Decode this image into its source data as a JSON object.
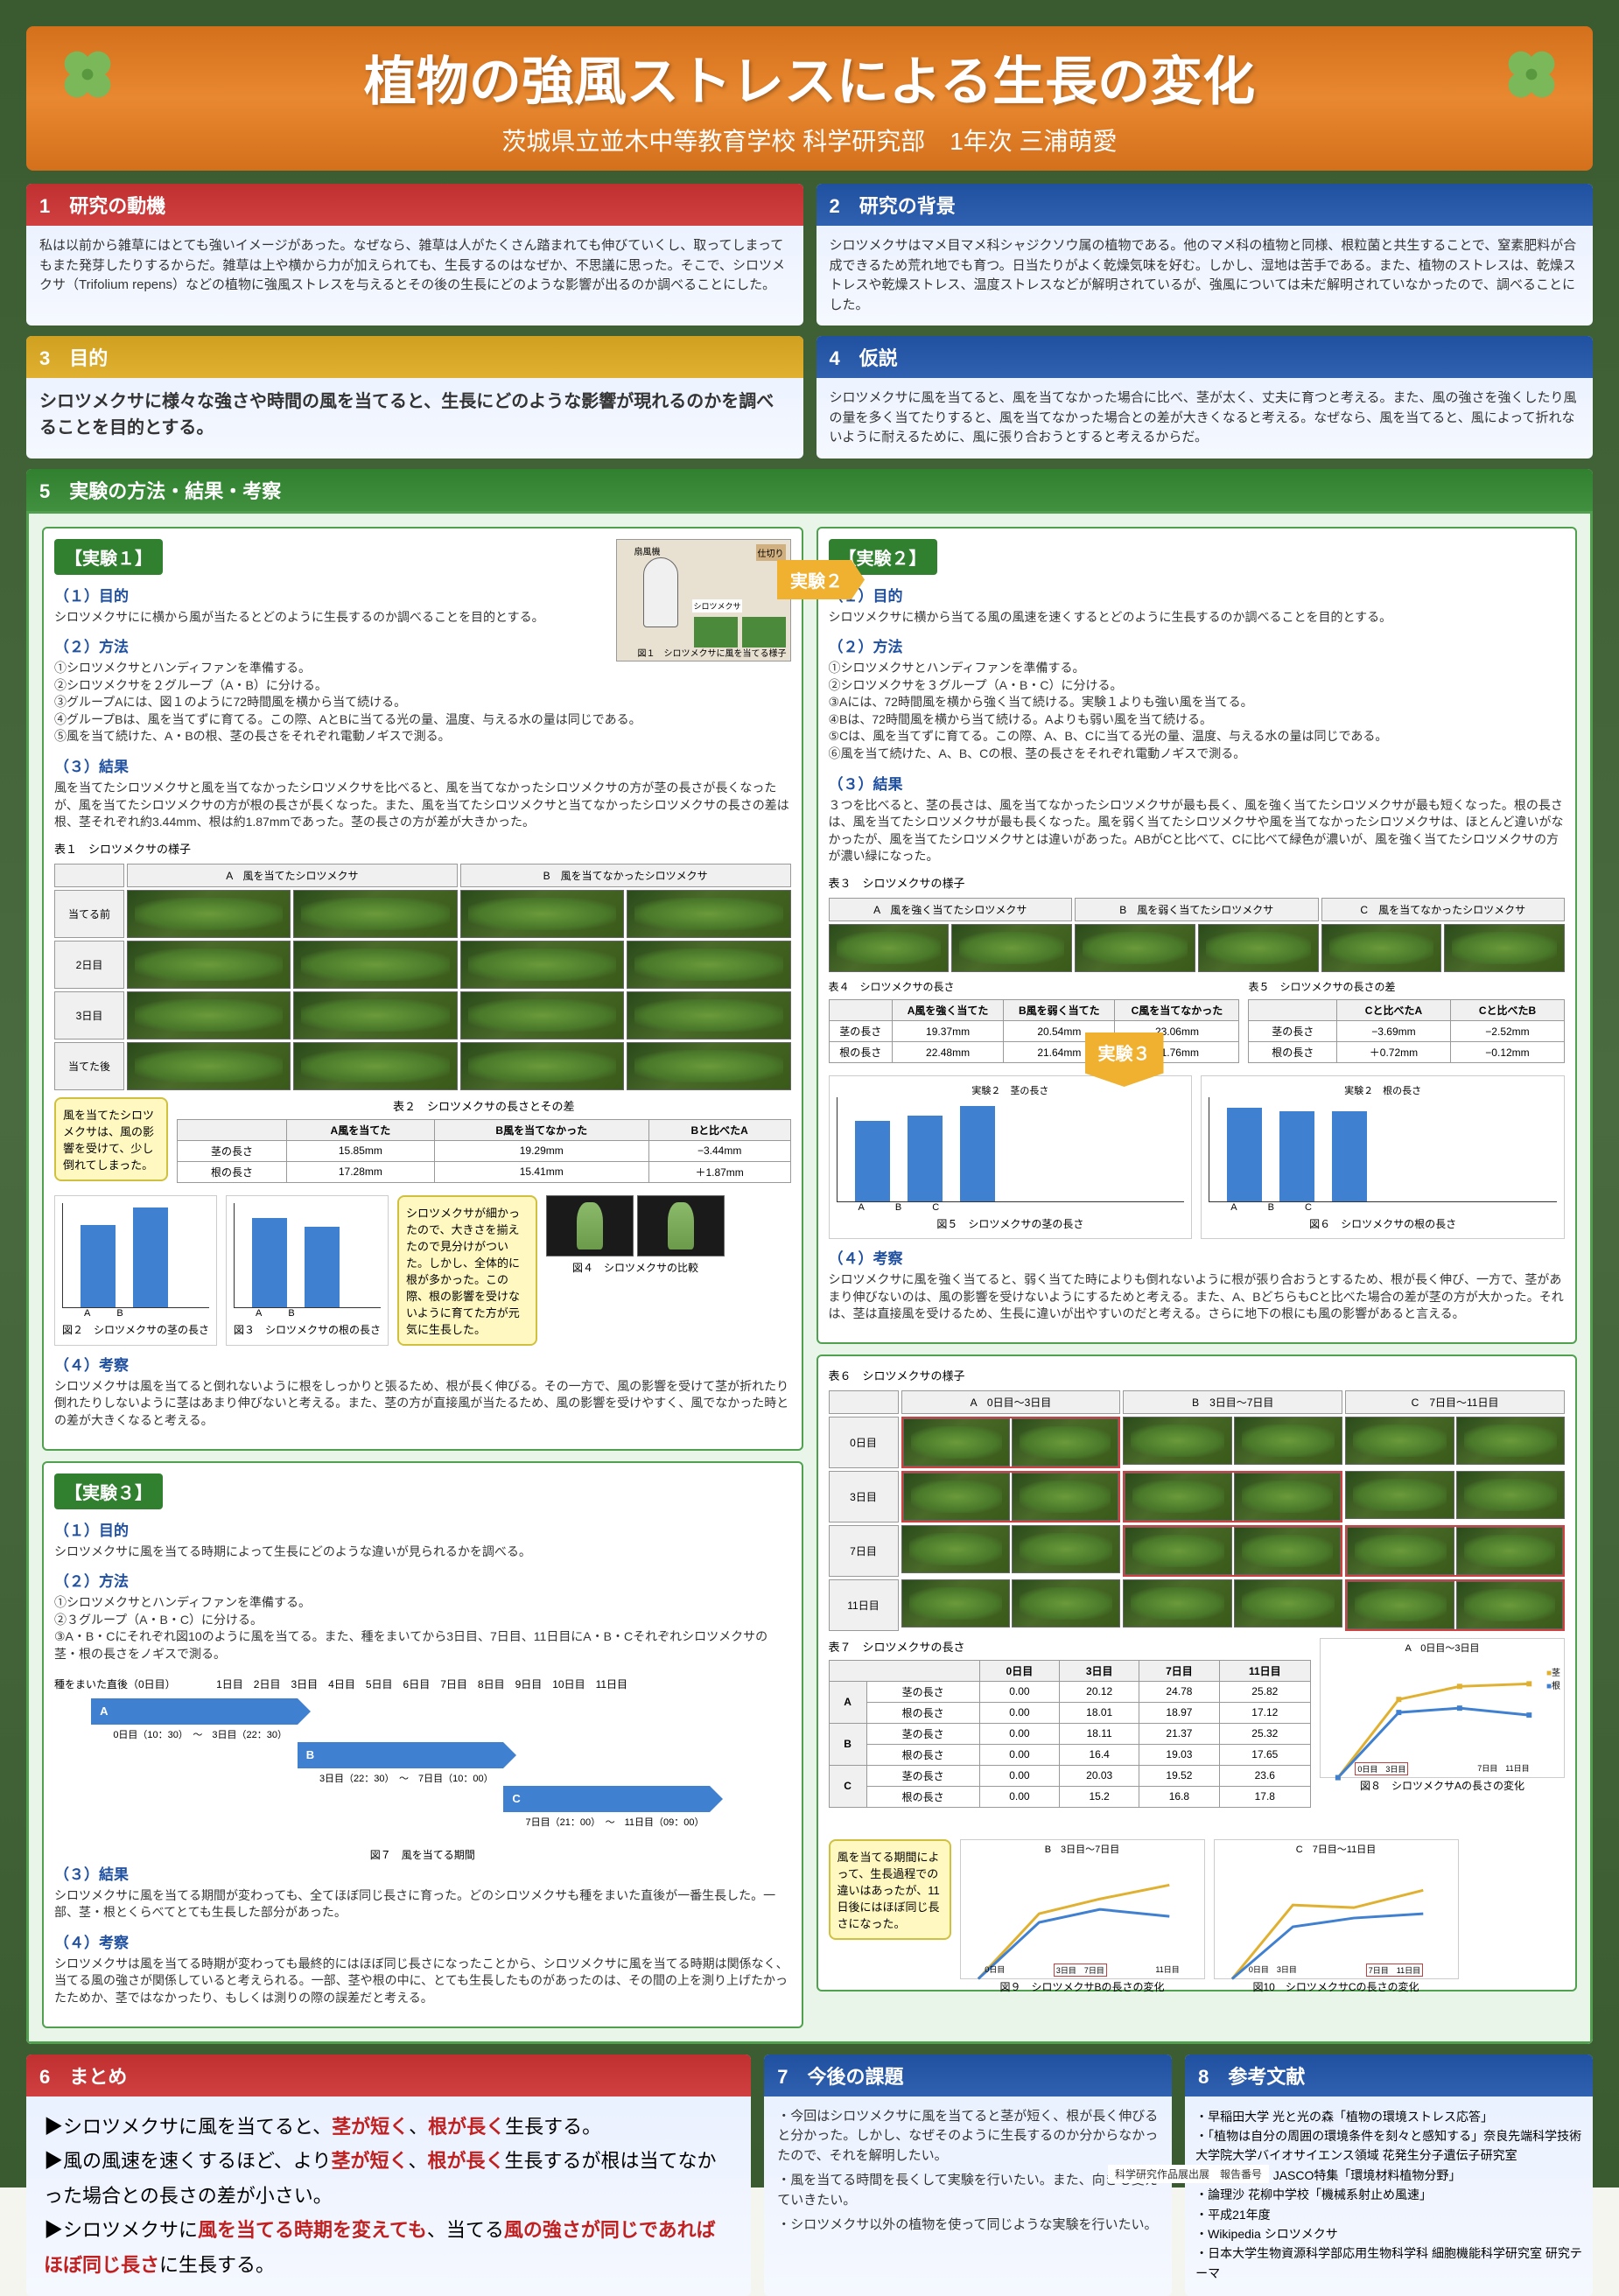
{
  "title": "植物の強風ストレスによる生長の変化",
  "subtitle": "茨城県立並木中等教育学校 科学研究部　1年次 三浦萌愛",
  "s1": {
    "head": "1　研究の動機",
    "body": "私は以前から雑草にはとても強いイメージがあった。なぜなら、雑草は人がたくさん踏まれても伸びていくし、取ってしまってもまた発芽したりするからだ。雑草は上や横から力が加えられても、生長するのはなぜか、不思議に思った。そこで、シロツメクサ（Trifolium repens）などの植物に強風ストレスを与えるとその後の生長にどのような影響が出るのか調べることにした。"
  },
  "s2": {
    "head": "2　研究の背景",
    "body": "シロツメクサはマメ目マメ科シャジクソウ属の植物である。他のマメ科の植物と同様、根粒菌と共生することで、窒素肥料が合成できるため荒れ地でも育つ。日当たりがよく乾燥気味を好む。しかし、湿地は苦手である。また、植物のストレスは、乾燥ストレスや乾燥ストレス、温度ストレスなどが解明されているが、強風については未だ解明されていなかったので、調べることにした。"
  },
  "s3": {
    "head": "3　目的",
    "body": "シロツメクサに様々な強さや時間の風を当てると、生長にどのような影響が現れるのかを調べることを目的とする。"
  },
  "s4": {
    "head": "4　仮説",
    "body": "シロツメクサに風を当てると、風を当てなかった場合に比べ、茎が太く、丈夫に育つと考える。また、風の強さを強くしたり風の量を多く当てたりすると、風を当てなかった場合との差が大きくなると考える。なぜなら、風を当てると、風によって折れないように耐えるために、風に張り合おうとすると考えるからだ。"
  },
  "s5": {
    "head": "5　実験の方法・結果・考察"
  },
  "exp1": {
    "title": "【実験１】",
    "purpose_h": "（１）目的",
    "purpose": "シロツメクサにに横から風が当たるとどのように生長するのか調べることを目的とする。",
    "method_h": "（２）方法",
    "methods": [
      "①シロツメクサとハンディファンを準備する。",
      "②シロツメクサを２グループ（A・B）に分ける。",
      "③グループAには、図１のように72時間風を横から当て続ける。",
      "④グループBは、風を当てずに育てる。この際、AとBに当てる光の量、温度、与える水の量は同じである。",
      "⑤風を当て続けた、A・Bの根、茎の長さをそれぞれ電動ノギスで測る。"
    ],
    "result_h": "（３）結果",
    "result": "風を当てたシロツメクサと風を当てなかったシロツメクサを比べると、風を当てなかったシロツメクサの方が茎の長さが長くなったが、風を当てたシロツメクサの方が根の長さが長くなった。また、風を当てたシロツメクサと当てなかったシロツメクサの長さの差は根、茎それぞれ約3.44mm、根は約1.87mmであった。茎の長さの方が差が大きかった。",
    "table1_cap": "表１　シロツメクサの様子",
    "row_labels": [
      "当てる前",
      "2日目",
      "3日目",
      "当てた後"
    ],
    "col_a": "A　風を当てたシロツメクサ",
    "col_b": "B　風を当てなかったシロツメクサ",
    "table2_cap": "表２　シロツメクサの長さとその差",
    "t2": {
      "h": [
        "",
        "A風を当てた",
        "B風を当てなかった",
        "Bと比べたA"
      ],
      "r1": [
        "茎の長さ",
        "15.85mm",
        "19.29mm",
        "−3.44mm"
      ],
      "r2": [
        "根の長さ",
        "17.28mm",
        "15.41mm",
        "＋1.87mm"
      ]
    },
    "callout1": "風を当てたシロツメクサは、風の影響を受けて、少し倒れてしまった。",
    "chart2_cap": "図２　シロツメクサの茎の長さ",
    "chart3_cap": "図３　シロツメクサの根の長さ",
    "chart2_vals": [
      15.85,
      19.29
    ],
    "chart3_vals": [
      17.28,
      15.41
    ],
    "callout2": "シロツメクサが細かったので、大きさを揃えたので見分けがついた。しかし、全体的に根が多かった。この際、根の影響を受けないように育てた方が元気に生長した。",
    "fig4_cap": "図４　シロツメクサの比較",
    "consider_h": "（４）考察",
    "consider": "シロツメクサは風を当てると倒れないように根をしっかりと張るため、根が長く伸びる。その一方で、風の影響を受けて茎が折れたり倒れたりしないように茎はあまり伸びないと考える。また、茎の方が直接風が当たるため、風の影響を受けやすく、風でなかった時との差が大きくなると考える。"
  },
  "exp2": {
    "title": "【実験２】",
    "purpose_h": "（１）目的",
    "purpose": "シロツメクサに横から当てる風の風速を速くするとどのように生長するのか調べることを目的とする。",
    "method_h": "（２）方法",
    "methods": [
      "①シロツメクサとハンディファンを準備する。",
      "②シロツメクサを３グループ（A・B・C）に分ける。",
      "③Aには、72時間風を横から強く当て続ける。実験１よりも強い風を当てる。",
      "④Bは、72時間風を横から当て続ける。Aよりも弱い風を当て続ける。",
      "⑤Cは、風を当てずに育てる。この際、A、B、Cに当てる光の量、温度、与える水の量は同じである。",
      "⑥風を当て続けた、A、B、Cの根、茎の長さをそれぞれ電動ノギスで測る。"
    ],
    "result_h": "（３）結果",
    "result": "３つを比べると、茎の長さは、風を当てなかったシロツメクサが最も長く、風を強く当てたシロツメクサが最も短くなった。根の長さは、風を当てたシロツメクサが最も長くなった。風を弱く当てたシロツメクサや風を当てなかったシロツメクサは、ほとんど違いがなかったが、風を当てたシロツメクサとは違いがあった。ABがCと比べて、Cに比べて緑色が濃いが、風を強く当てたシロツメクサの方が濃い緑になった。",
    "table3_cap": "表３　シロツメクサの様子",
    "col_a": "A　風を強く当てたシロツメクサ",
    "col_b": "B　風を弱く当てたシロツメクサ",
    "col_c": "C　風を当てなかったシロツメクサ",
    "table4_cap": "表４　シロツメクサの長さ",
    "t4": {
      "h": [
        "",
        "A風を強く当てた",
        "B風を弱く当てた",
        "C風を当てなかった"
      ],
      "r1": [
        "茎の長さ",
        "19.37mm",
        "20.54mm",
        "23.06mm"
      ],
      "r2": [
        "根の長さ",
        "22.48mm",
        "21.64mm",
        "21.76mm"
      ]
    },
    "table5_cap": "表５　シロツメクサの長さの差",
    "t5": {
      "h": [
        "",
        "Cと比べたA",
        "Cと比べたB"
      ],
      "r1": [
        "茎の長さ",
        "−3.69mm",
        "−2.52mm"
      ],
      "r2": [
        "根の長さ",
        "＋0.72mm",
        "−0.12mm"
      ]
    },
    "chart5_cap": "図５　シロツメクサの茎の長さ",
    "chart6_cap": "図６　シロツメクサの根の長さ",
    "c5_vals": [
      19.37,
      20.54,
      23.06
    ],
    "c6_vals": [
      22.48,
      21.64,
      21.76
    ],
    "consider_h": "（４）考察",
    "consider": "シロツメクサに風を強く当てると、弱く当てた時によりも倒れないように根が張り合おうとするため、根が長く伸び、一方で、茎があまり伸びないのは、風の影響を受けないようにするためと考える。また、A、BどちらもCと比べた場合の差が茎の方が大かった。それは、茎は直接風を受けるため、生長に違いが出やすいのだと考える。さらに地下の根にも風の影響があると言える。"
  },
  "exp3": {
    "title": "【実験３】",
    "purpose_h": "（１）目的",
    "purpose": "シロツメクサに風を当てる時期によって生長にどのような違いが見られるかを調べる。",
    "method_h": "（２）方法",
    "methods": [
      "①シロツメクサとハンディファンを準備する。",
      "②３グループ（A・B・C）に分ける。",
      "③A・B・Cにそれぞれ図10のように風を当てる。また、種をまいてから3日目、7日目、11日目にA・B・Cそれぞれシロツメクサの茎・根の長さをノギスで測る。"
    ],
    "timeline": {
      "head": "種をまいた直後（0日目）",
      "d3": "3日目",
      "d7": "7日目",
      "d11": "11日目",
      "a_span": "0日目（10：30）　～　3日目（22：30）",
      "b_span": "3日目（22：30）　～　7日目（10：00）",
      "c_span": "7日目（21：00）　～　11日目（09：00）",
      "cap": "図７　風を当てる期間"
    },
    "result_h": "（３）結果",
    "result": "シロツメクサに風を当てる期間が変わっても、全てほぼ同じ長さに育った。どのシロツメクサも種をまいた直後が一番生長した。一部、茎・根とくらべてとても生長した部分があった。",
    "consider_h": "（４）考察",
    "consider": "シロツメクサは風を当てる時期が変わっても最終的にはほぼ同じ長さになったことから、シロツメクサに風を当てる時期は関係なく、当てる風の強さが関係していると考えられる。一部、茎や根の中に、とても生長したものがあったのは、その間の上を測り上げたかったためか、茎ではなかったり、もしくは測りの際の誤差だと考える。",
    "table6_cap": "表６　シロツメクサの様子",
    "t6_cols": [
      "A　0日目～3日目",
      "B　3日目～7日目",
      "C　7日目～11日目"
    ],
    "t6_rows": [
      "0日目",
      "3日目",
      "7日目",
      "11日目"
    ],
    "table7_cap": "表７　シロツメクサの長さ",
    "t7": {
      "h": [
        "",
        "0日目",
        "3日目",
        "7日目",
        "11日目"
      ],
      "a1": [
        "茎の長さ",
        "0.00",
        "20.12",
        "24.78",
        "25.82"
      ],
      "a2": [
        "根の長さ",
        "0.00",
        "18.01",
        "18.97",
        "17.12"
      ],
      "b1": [
        "茎の長さ",
        "0.00",
        "18.11",
        "21.37",
        "25.32"
      ],
      "b2": [
        "根の長さ",
        "0.00",
        "16.4",
        "19.03",
        "17.65"
      ],
      "c1": [
        "茎の長さ",
        "0.00",
        "20.03",
        "19.52",
        "23.6"
      ],
      "c2": [
        "根の長さ",
        "0.00",
        "15.2",
        "16.8",
        "17.8"
      ]
    },
    "callout": "風を当てる期間によって、生長過程での違いはあったが、11日後にはほぼ同じ長さになった。",
    "fig8": "図８　シロツメクサAの長さの変化",
    "fig9": "図９　シロツメクサBの長さの変化",
    "fig10": "図10　シロツメクサCの長さの変化",
    "legend_stem": "茎",
    "legend_root": "根"
  },
  "s6": {
    "head": "6　まとめ",
    "lines": [
      "▶シロツメクサに風を当てると、<em>茎が短く</em>、<em>根が長く</em>生長する。",
      "▶風の風速を速くするほど、より<em>茎が短く</em>、<em>根が長く</em>生長するが根は当てなかった場合との長さの差が小さい。",
      "▶シロツメクサに<em>風を当てる時期を変えても</em>、当てる<em>風の強さが同じであればほぼ同じ長さ</em>に生長する。"
    ]
  },
  "s7": {
    "head": "7　今後の課題",
    "items": [
      "今回はシロツメクサに風を当てると茎が短く、根が長く伸びると分かった。しかし、なぜそのように生長するのか分からなかったので、それを解明したい。",
      "風を当てる時間を長くして実験を行いたい。また、向きも変えていきたい。",
      "シロツメクサ以外の植物を使って同じような実験を行いたい。"
    ]
  },
  "s8": {
    "head": "8　参考文献",
    "items": [
      "・早稲田大学 光と光の森「植物の環境ストレス応答」",
      "・「植物は自分の周囲の環境条件を刻々と感知する」奈良先端科学技術大学院大学バイオサイエンス領域 花発生分子遺伝子研究室",
      "・バンテック JASCO特集「環境材料植物分野」",
      "・論理沙 花柳中学校「機械系射止め風速」",
      "・平成21年度",
      "・Wikipedia シロツメクサ",
      "・日本大学生物資源科学部応用生物科学科 細胞機能科学研究室 研究テーマ"
    ]
  },
  "fig1_cap": "図１　シロツメクサに風を当てる様子",
  "arrow_label": "実験２",
  "arrow_label2": "実験３",
  "footer": "科学研究作品展出展　報告番号"
}
